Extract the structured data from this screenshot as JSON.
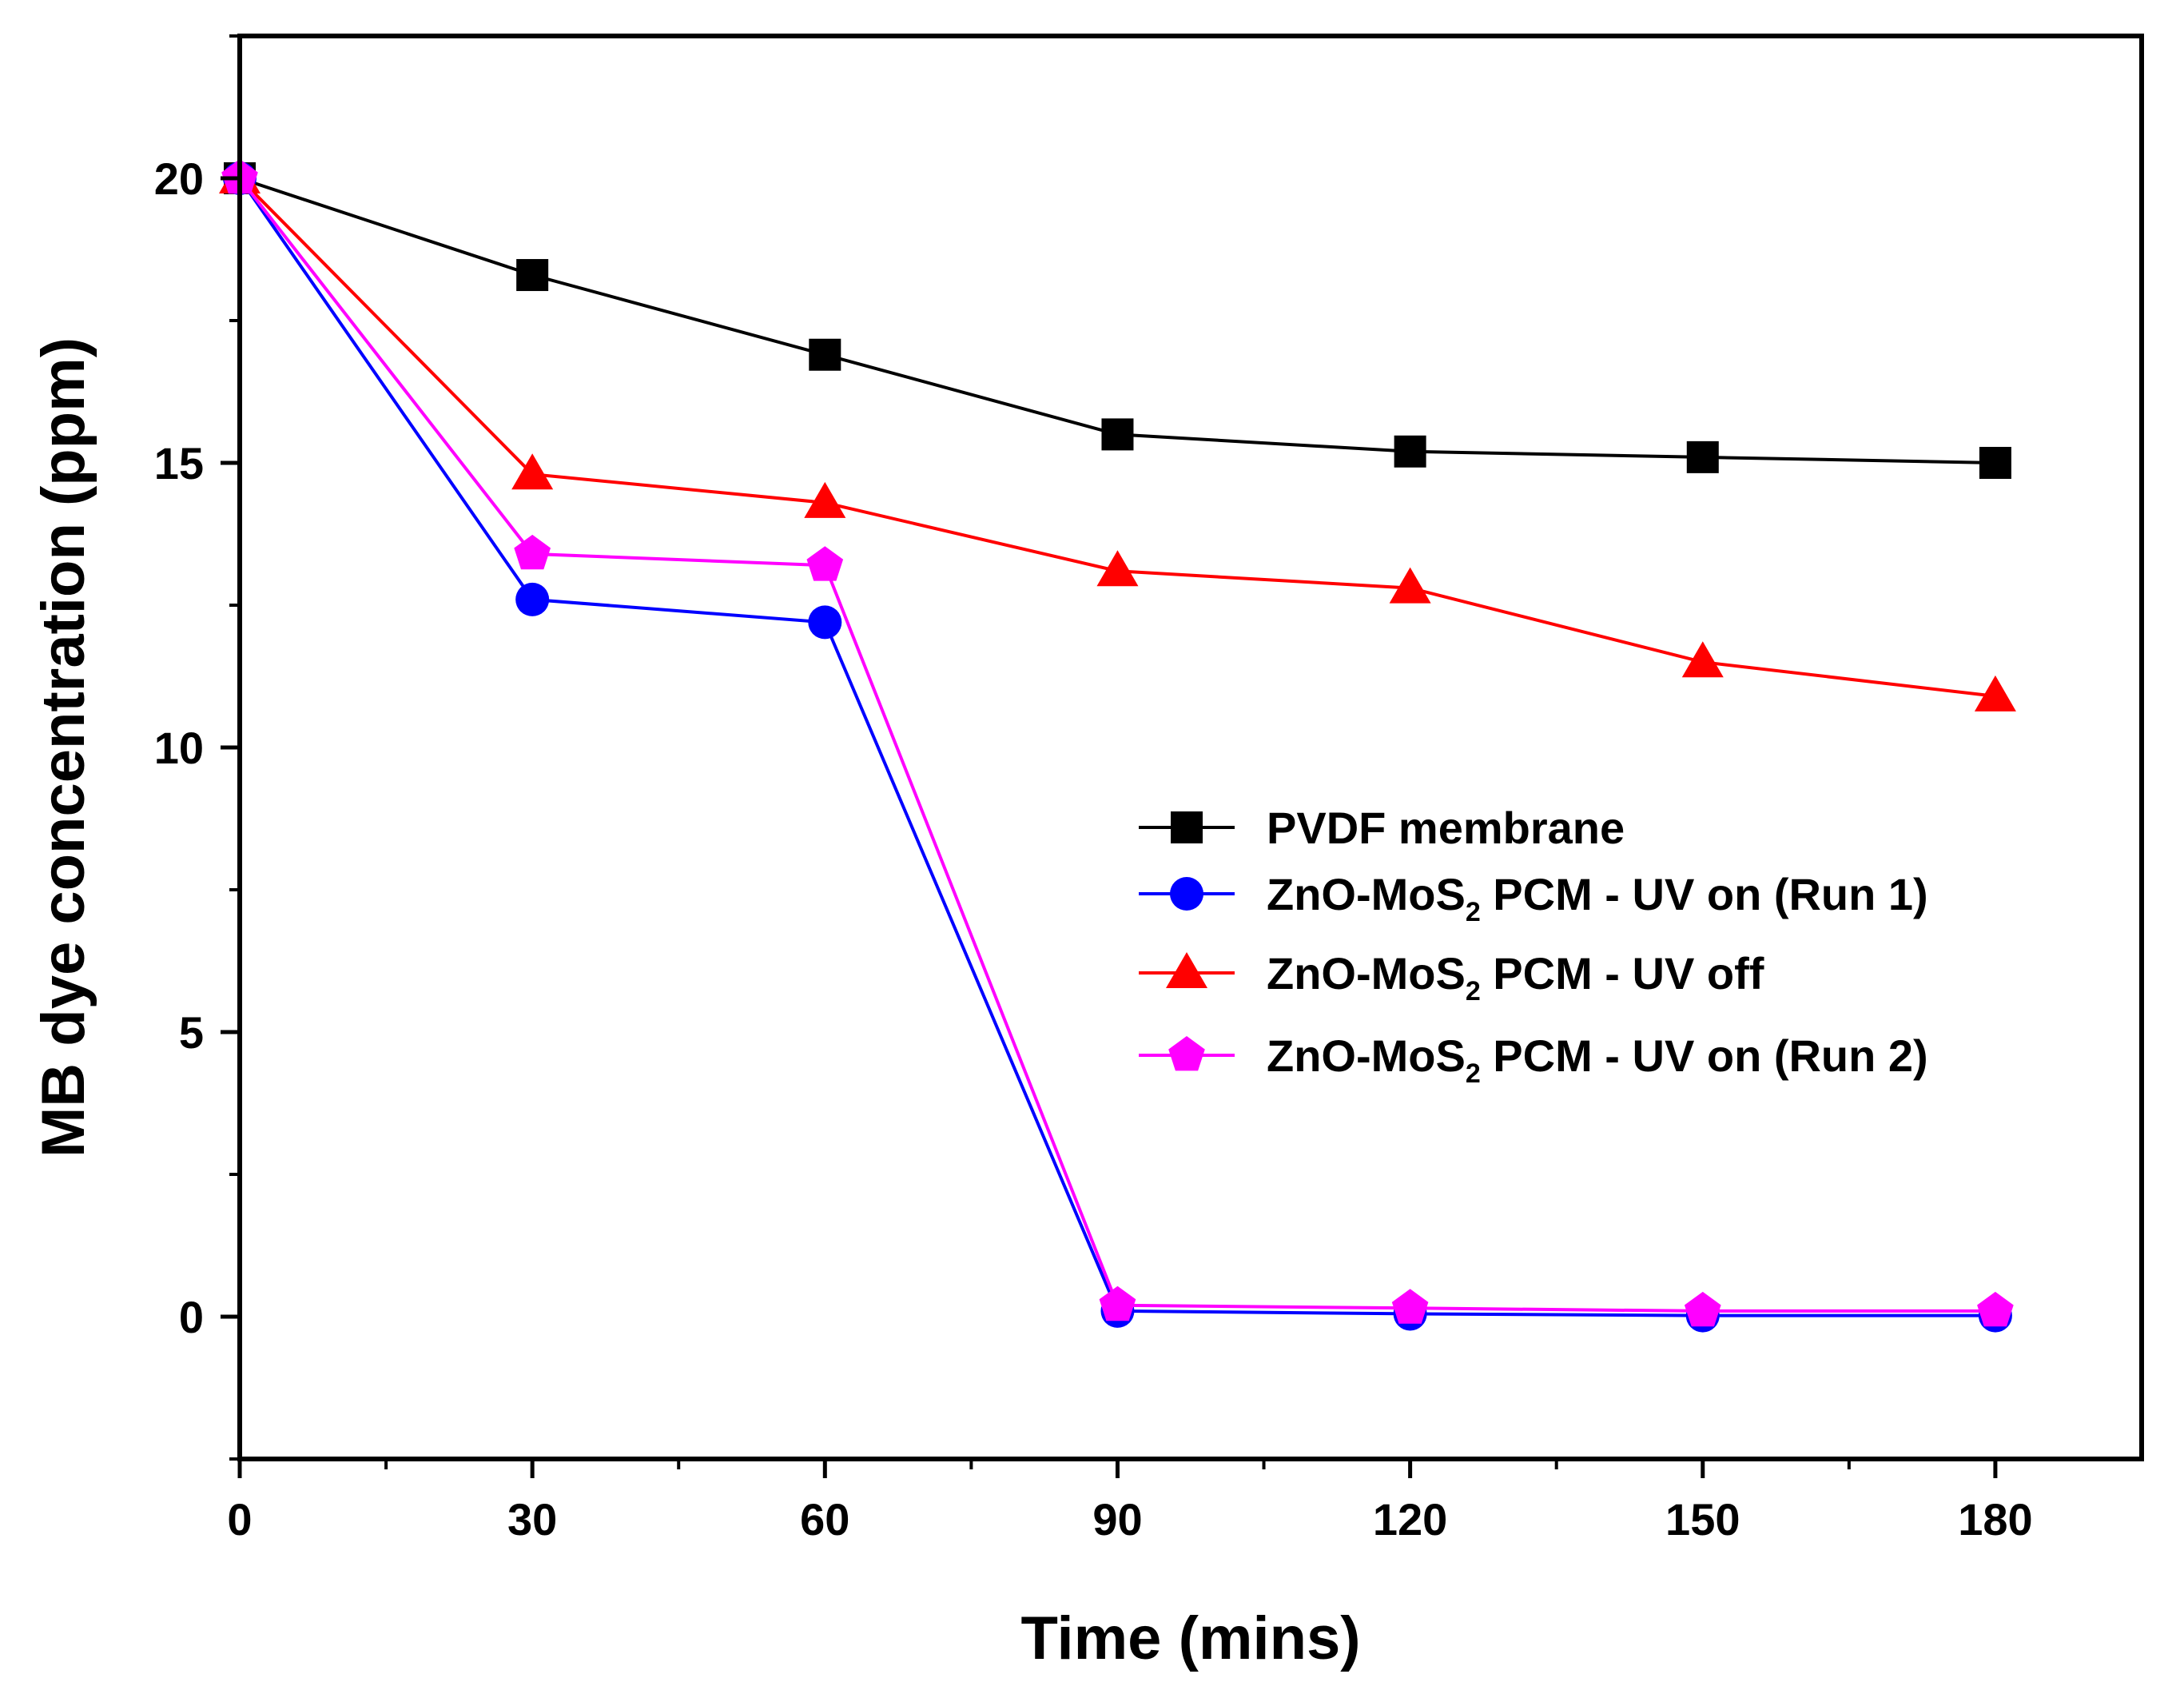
{
  "chart_data": {
    "type": "line",
    "title": "",
    "xlabel": "Time (mins)",
    "ylabel": "MB dye concentration (ppm)",
    "xlim": [
      0,
      195
    ],
    "ylim": [
      -2.5,
      22.5
    ],
    "xticks": [
      0,
      30,
      60,
      90,
      120,
      150,
      180
    ],
    "xtick_labels": [
      "0",
      "30",
      "60",
      "90",
      "120",
      "150",
      "180"
    ],
    "yticks": [
      0,
      5,
      10,
      15,
      20
    ],
    "ytick_labels": [
      "0",
      "5",
      "10",
      "15",
      "20"
    ],
    "grid": false,
    "legend_position": "center-right",
    "x": [
      0,
      30,
      60,
      90,
      120,
      150,
      180
    ],
    "series": [
      {
        "name": "PVDF membrane",
        "legend": {
          "pre": "PVDF membrane",
          "sub": "",
          "post": ""
        },
        "color": "#000000",
        "marker": "square",
        "values": [
          20.0,
          18.3,
          16.9,
          15.5,
          15.2,
          15.1,
          15.0
        ]
      },
      {
        "name": "ZnO-MoS2 PCM - UV on (Run 1)",
        "legend": {
          "pre": "ZnO-MoS",
          "sub": "2",
          "post": " PCM - UV on (Run 1)"
        },
        "color": "#0000ff",
        "marker": "circle",
        "values": [
          20.0,
          12.6,
          12.2,
          0.1,
          0.05,
          0.02,
          0.02
        ]
      },
      {
        "name": "ZnO-MoS2 PCM - UV off",
        "legend": {
          "pre": "ZnO-MoS",
          "sub": "2",
          "post": " PCM - UV off"
        },
        "color": "#ff0000",
        "marker": "triangle",
        "values": [
          20.0,
          14.8,
          14.3,
          13.1,
          12.8,
          11.5,
          10.9
        ]
      },
      {
        "name": "ZnO-MoS2 PCM - UV on (Run 2)",
        "legend": {
          "pre": "ZnO-MoS",
          "sub": "2",
          "post": " PCM - UV on (Run 2)"
        },
        "color": "#ff00ff",
        "marker": "pentagon",
        "values": [
          20.0,
          13.4,
          13.2,
          0.2,
          0.15,
          0.1,
          0.1
        ]
      }
    ]
  }
}
